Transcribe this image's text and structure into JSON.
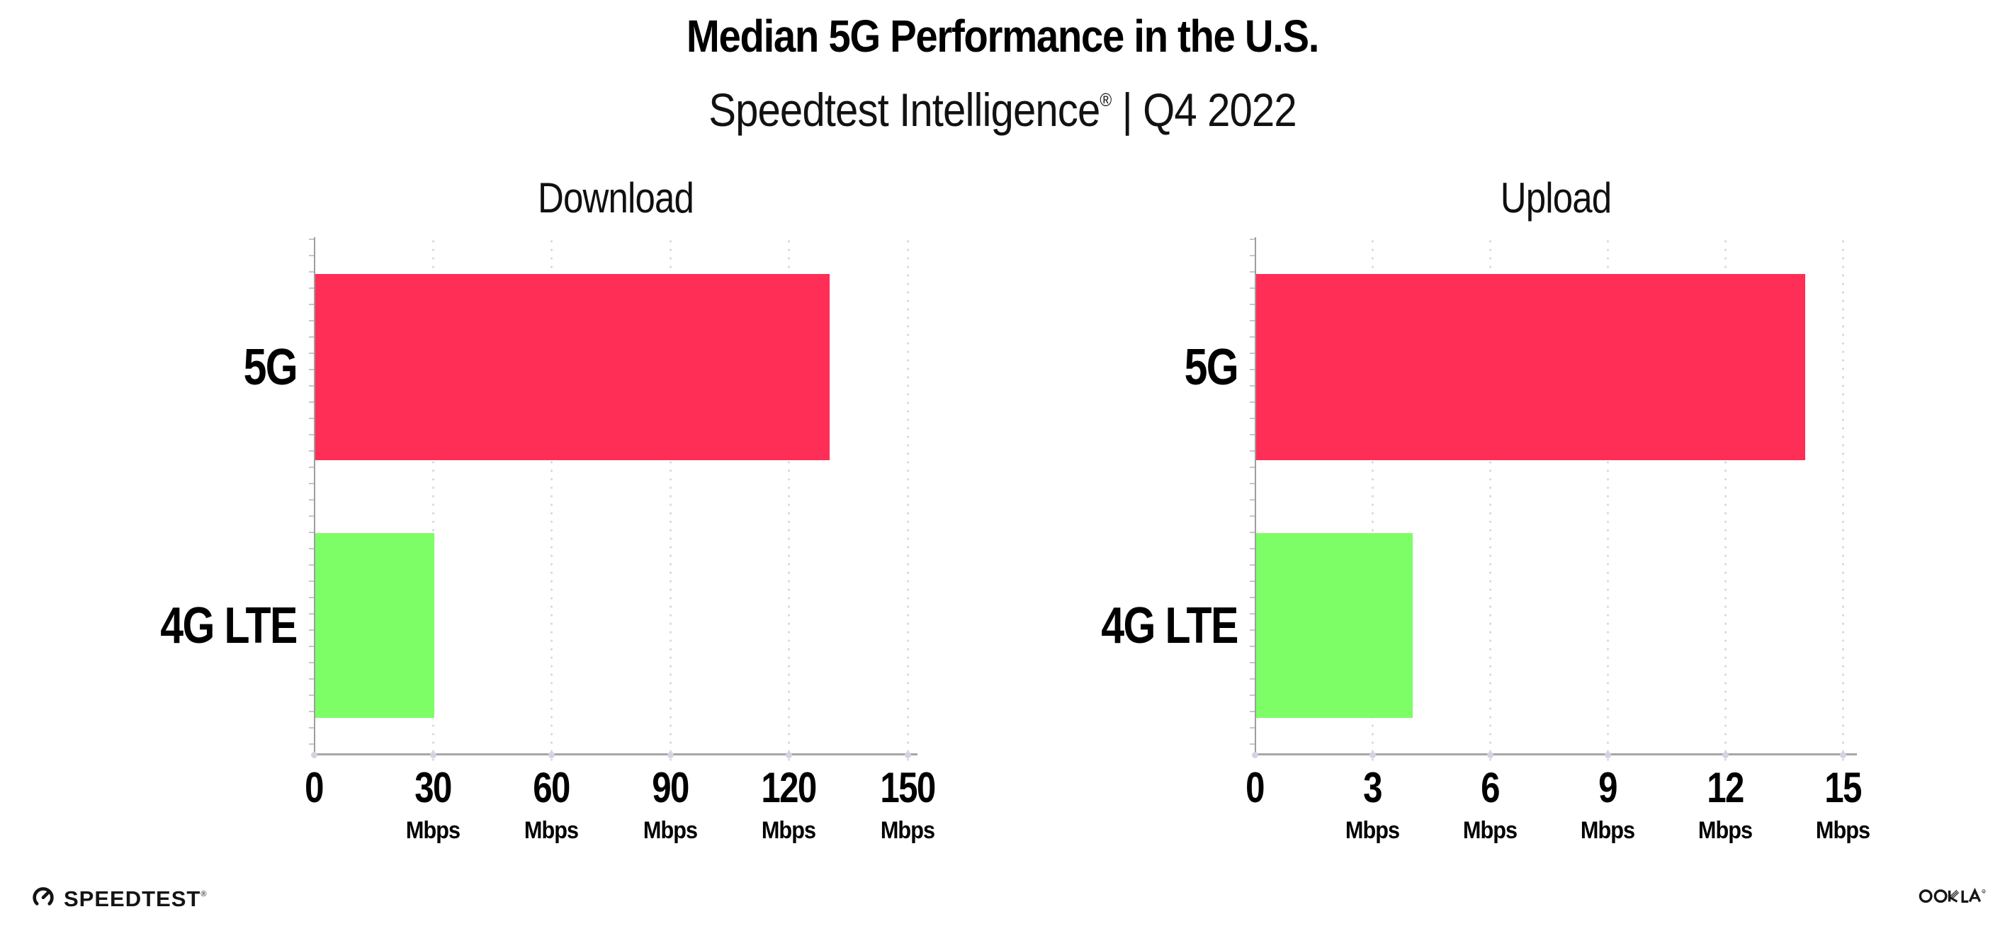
{
  "header": {
    "title": "Median 5G Performance in the U.S.",
    "subtitle_brand": "Speedtest Intelligence",
    "subtitle_reg": "®",
    "subtitle_rest": " | Q4 2022"
  },
  "chart_data": [
    {
      "type": "bar",
      "orientation": "horizontal",
      "title": "Download",
      "categories": [
        "5G",
        "4G LTE"
      ],
      "values": [
        130,
        30
      ],
      "value_unit": "Mbps",
      "xlim": [
        0,
        150
      ],
      "xticks": [
        0,
        30,
        60,
        90,
        120,
        150
      ],
      "tick_unit": "Mbps",
      "bar_colors": [
        "#ff2e56",
        "#7dfd66"
      ],
      "grid": "vertical-dotted",
      "legend": "none"
    },
    {
      "type": "bar",
      "orientation": "horizontal",
      "title": "Upload",
      "categories": [
        "5G",
        "4G LTE"
      ],
      "values": [
        14,
        4
      ],
      "value_unit": "Mbps",
      "xlim": [
        0,
        15
      ],
      "xticks": [
        0,
        3,
        6,
        9,
        12,
        15
      ],
      "tick_unit": "Mbps",
      "bar_colors": [
        "#ff2e56",
        "#7dfd66"
      ],
      "grid": "vertical-dotted",
      "legend": "none"
    }
  ],
  "footer": {
    "speedtest_label": "SPEEDTEST",
    "speedtest_reg": "®",
    "ookla_label": "OOKLA",
    "ookla_reg": "®"
  }
}
